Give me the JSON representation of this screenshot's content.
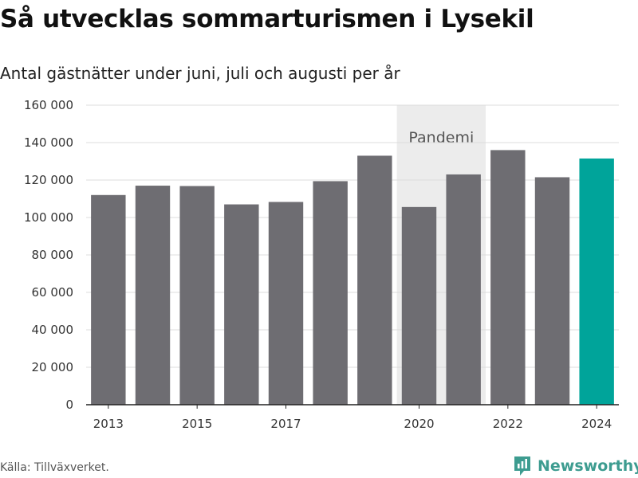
{
  "header": {
    "title": "Så utvecklas sommarturismen i Lysekil",
    "subtitle": "Antal gästnätter under juni, juli och augusti per år"
  },
  "footer": {
    "source": "Källa: Tillväxverket.",
    "brand": "Newsworthy",
    "brand_icon": "newsworthy-logo-icon"
  },
  "colors": {
    "bar": "#6e6d72",
    "highlight": "#00a49a",
    "band": "#ececec",
    "grid": "#dddddd",
    "brand": "#3d9c90"
  },
  "chart_data": {
    "type": "bar",
    "categories": [
      2013,
      2014,
      2015,
      2016,
      2017,
      2018,
      2019,
      2020,
      2021,
      2022,
      2023,
      2024
    ],
    "values": [
      112000,
      117000,
      116800,
      107000,
      108300,
      119400,
      133000,
      105600,
      123000,
      136000,
      121500,
      131500
    ],
    "highlight_category": 2024,
    "title": "Så utvecklas sommarturismen i Lysekil",
    "subtitle": "Antal gästnätter under juni, juli och augusti per år",
    "xlabel": "",
    "ylabel": "",
    "ylim": [
      0,
      160000
    ],
    "y_ticks": [
      0,
      20000,
      40000,
      60000,
      80000,
      100000,
      120000,
      140000,
      160000
    ],
    "y_tick_labels": [
      "0",
      "20 000",
      "40 000",
      "60 000",
      "80 000",
      "100 000",
      "120 000",
      "140 000",
      "160 000"
    ],
    "x_ticks": [
      2013,
      2015,
      2017,
      2020,
      2022,
      2024
    ],
    "x_tick_labels": [
      "2013",
      "2015",
      "2017",
      "2020",
      "2022",
      "2024"
    ],
    "annotations": [
      {
        "type": "band",
        "from": 2019.5,
        "to": 2021.5,
        "label": "Pandemi"
      }
    ],
    "grid": true,
    "legend": "none"
  }
}
